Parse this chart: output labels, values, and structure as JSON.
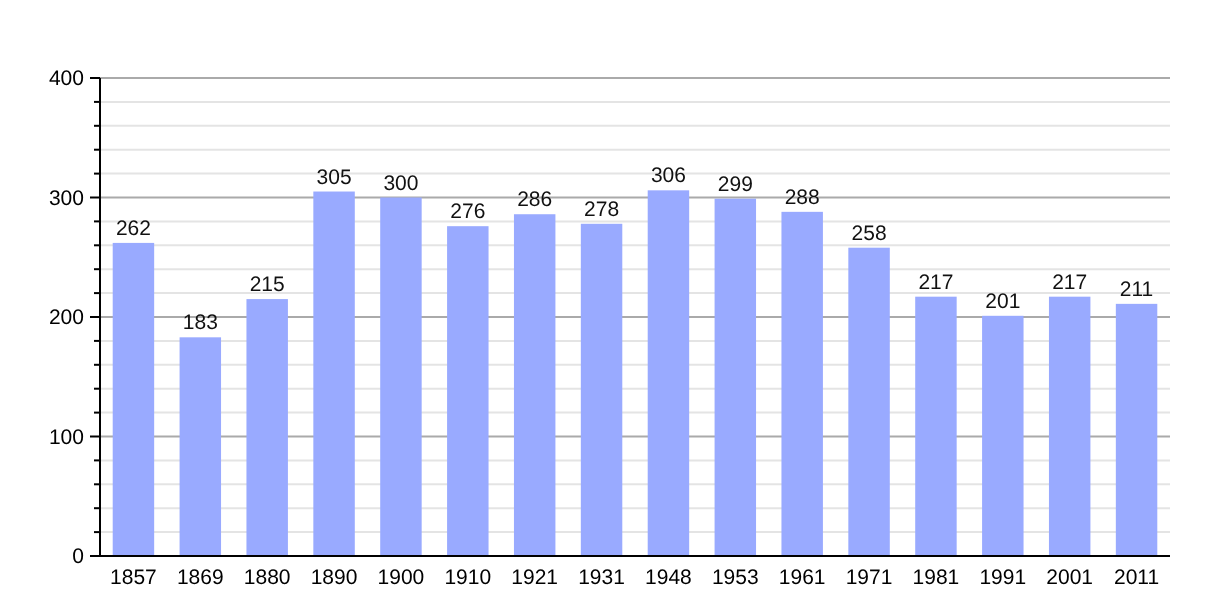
{
  "chart_data": {
    "type": "bar",
    "categories": [
      "1857",
      "1869",
      "1880",
      "1890",
      "1900",
      "1910",
      "1921",
      "1931",
      "1948",
      "1953",
      "1961",
      "1971",
      "1981",
      "1991",
      "2001",
      "2011"
    ],
    "values": [
      262,
      183,
      215,
      305,
      300,
      276,
      286,
      278,
      306,
      299,
      288,
      258,
      217,
      201,
      217,
      211
    ],
    "color": "#99aaff",
    "data_labels": true,
    "grid": "y",
    "ylim": [
      0,
      400
    ],
    "yticks": [
      0,
      {
        "value": 20,
        "label": null
      },
      {
        "value": 40,
        "label": null
      },
      {
        "value": 60,
        "label": null
      },
      {
        "value": 80,
        "label": null
      },
      100,
      {
        "value": 120,
        "label": null
      },
      {
        "value": 140,
        "label": null
      },
      {
        "value": 160,
        "label": null
      },
      {
        "value": 180,
        "label": null
      },
      200,
      {
        "value": 220,
        "label": null
      },
      {
        "value": 240,
        "label": null
      },
      {
        "value": 260,
        "label": null
      },
      {
        "value": 280,
        "label": null
      },
      300,
      {
        "value": 320,
        "label": null
      },
      {
        "value": 340,
        "label": null
      },
      {
        "value": 360,
        "label": null
      },
      {
        "value": 380,
        "label": null
      },
      400
    ]
  }
}
